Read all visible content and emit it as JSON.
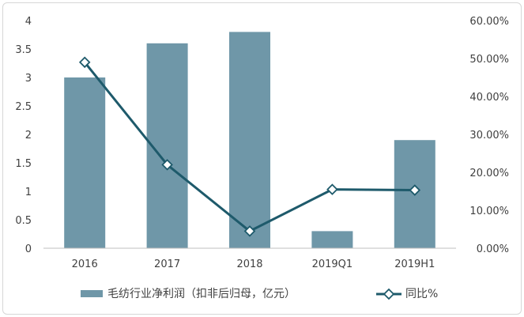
{
  "chart_data": {
    "type": "bar+line",
    "categories": [
      "2016",
      "2017",
      "2018",
      "2019Q1",
      "2019H1"
    ],
    "series": [
      {
        "name": "毛纺行业净利润（扣非后归母，亿元）",
        "type": "bar",
        "axis": "left",
        "values": [
          3.0,
          3.6,
          3.8,
          0.3,
          1.9
        ]
      },
      {
        "name": "同比%",
        "type": "line",
        "axis": "right",
        "values": [
          0.49,
          0.22,
          0.045,
          0.155,
          0.153
        ]
      }
    ],
    "yleft": {
      "ylim": [
        0,
        4
      ],
      "ticks": [
        "0",
        "0.5",
        "1",
        "1.5",
        "2",
        "2.5",
        "3",
        "3.5",
        "4"
      ]
    },
    "yright": {
      "ylim": [
        0,
        0.6
      ],
      "ticks": [
        "0.00%",
        "10.00%",
        "20.00%",
        "30.00%",
        "40.00%",
        "50.00%",
        "60.00%"
      ]
    },
    "grid": false,
    "legend_position": "bottom"
  },
  "colors": {
    "bar": "#6f97a8",
    "line": "#1e5a6b",
    "marker_fill": "#ffffff",
    "axis": "#bfbfbf",
    "text": "#404040"
  }
}
